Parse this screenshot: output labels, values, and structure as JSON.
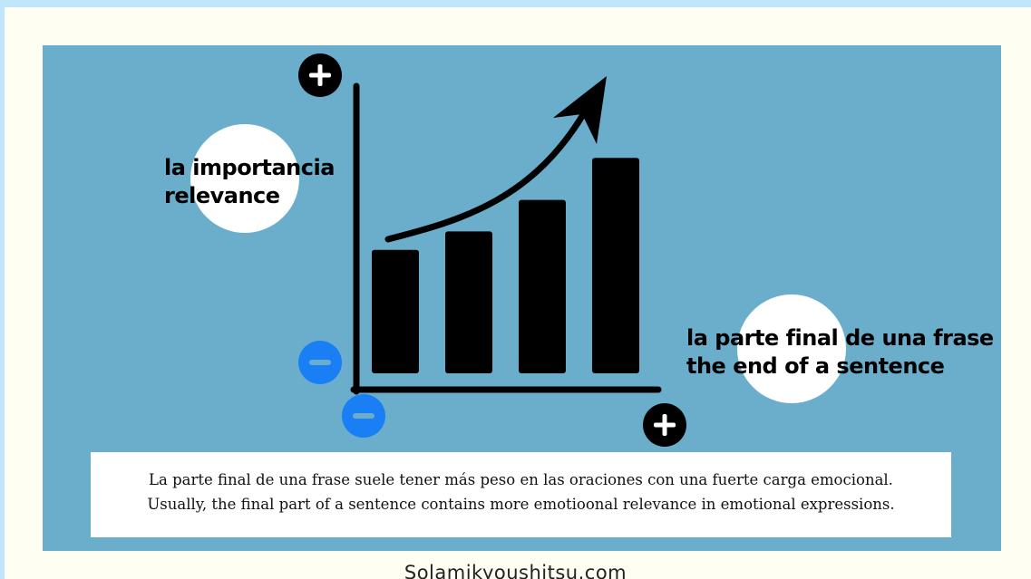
{
  "colors": {
    "background": "#fffef3",
    "border_band": "#bfe6fb",
    "panel": "#6aaecb",
    "bubble": "#ffffff",
    "ink": "#000000",
    "minus_icon": "#1a7ff5",
    "plus_icon": "#000000"
  },
  "diagram": {
    "bars_relative_height": [
      0.47,
      0.54,
      0.66,
      0.82
    ],
    "trend_arrow": "rising-curve-arrow",
    "icons": {
      "y_axis_top": "plus-icon",
      "y_axis_bottom": "minus-icon",
      "x_axis_start": "minus-icon",
      "x_axis_end": "plus-icon"
    }
  },
  "labels": {
    "importance_es": "la importancia",
    "importance_en": "relevance",
    "end_es": "la parte final de una frase",
    "end_en": "the end of a sentence"
  },
  "caption": {
    "line_es": "La parte final de una frase suele tener más peso en las oraciones con una fuerte carga emocional.",
    "line_en": "Usually, the final part of a sentence contains more emotioonal relevance in emotional expressions."
  },
  "footer": {
    "site": "Solamikyoushitsu.com"
  }
}
